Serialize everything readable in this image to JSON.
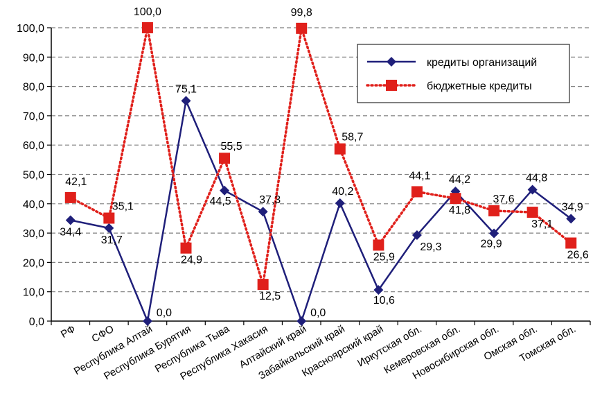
{
  "chart_data": {
    "type": "line",
    "categories": [
      "РФ",
      "СФО",
      "Республика Алтай",
      "Республика Бурятия",
      "Республика Тыва",
      "Республика Хакасия",
      "Алтайский край",
      "Забайкальский край",
      "Красноярский край",
      "Иркутская обл.",
      "Кемеровская обл.",
      "Новосибирская обл.",
      "Омская обл.",
      "Томская обл."
    ],
    "series": [
      {
        "name": "кредиты организаций",
        "color": "#1F1F7A",
        "marker": "diamond",
        "line_style": "solid",
        "values": [
          34.4,
          31.7,
          0.0,
          75.1,
          44.5,
          37.3,
          0.0,
          40.2,
          10.6,
          29.3,
          44.2,
          29.9,
          44.8,
          34.9
        ],
        "labels": [
          "34,4",
          "31,7",
          "0,0",
          "75,1",
          "44,5",
          "37,3",
          "0,0",
          "40,2",
          "10,6",
          "29,3",
          "44,2",
          "29,9",
          "44,8",
          "34,9"
        ]
      },
      {
        "name": "бюджетные кредиты",
        "color": "#E0201B",
        "marker": "square",
        "line_style": "dotted",
        "values": [
          42.1,
          35.1,
          100.0,
          24.9,
          55.5,
          12.5,
          99.8,
          58.7,
          25.9,
          44.1,
          41.8,
          37.6,
          37.1,
          26.6
        ],
        "labels": [
          "42,1",
          "35,1",
          "100,0",
          "24,9",
          "55,5",
          "12,5",
          "99,8",
          "58,7",
          "25,9",
          "44,1",
          "41,8",
          "37,6",
          "37,1",
          "26,6"
        ]
      }
    ],
    "y_ticks": [
      "0,0",
      "10,0",
      "20,0",
      "30,0",
      "40,0",
      "50,0",
      "60,0",
      "70,0",
      "80,0",
      "90,0",
      "100,0"
    ],
    "ylim": [
      0,
      100
    ],
    "grid": true,
    "legend": "top-right",
    "title": "",
    "xlabel": "",
    "ylabel": ""
  }
}
